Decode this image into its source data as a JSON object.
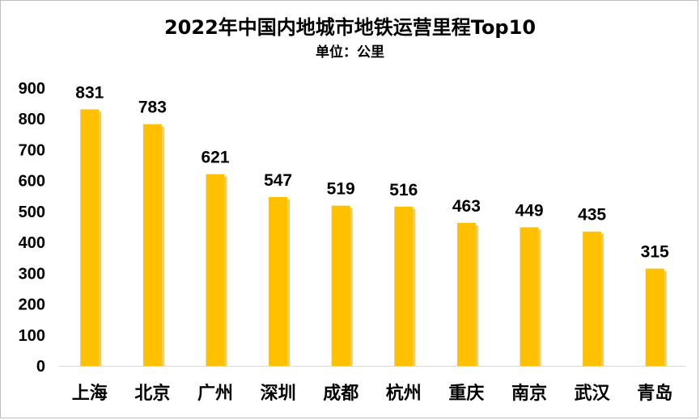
{
  "chart_data": {
    "type": "bar",
    "title": "2022年中国内地城市地铁运营里程Top10",
    "subtitle": "单位：公里",
    "categories": [
      "上海",
      "北京",
      "广州",
      "深圳",
      "成都",
      "杭州",
      "重庆",
      "南京",
      "武汉",
      "青岛"
    ],
    "values": [
      831,
      783,
      621,
      547,
      519,
      516,
      463,
      449,
      435,
      315
    ],
    "yticks": [
      "0",
      "100",
      "200",
      "300",
      "400",
      "500",
      "600",
      "700",
      "800",
      "900"
    ],
    "ylim": [
      0,
      900
    ],
    "grid": false,
    "legend": "none",
    "bar_color": "#FFC000",
    "bar_shadow_color": "#D9A300"
  }
}
